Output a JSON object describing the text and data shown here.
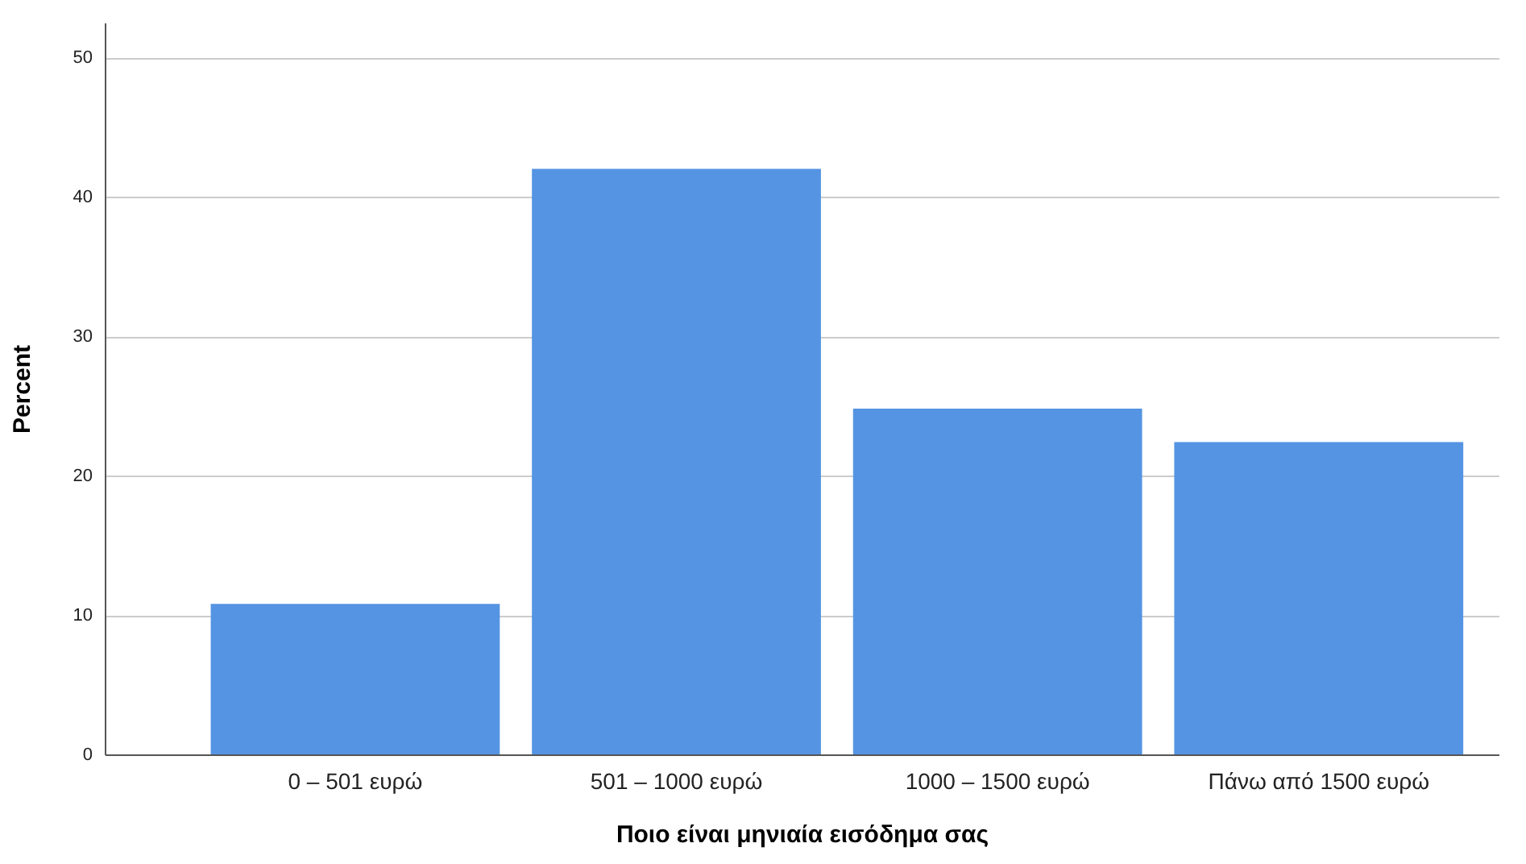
{
  "chart_data": {
    "type": "bar",
    "xlabel": "Ποιο είναι μηνιαία εισόδημα σας",
    "ylabel": "Percent",
    "categories": [
      "0 – 501 ευρώ",
      "501 – 1000 ευρώ",
      "1000 – 1500 ευρώ",
      "Πάνω από 1500 ευρώ"
    ],
    "values": [
      10.8,
      42.0,
      24.8,
      22.4
    ],
    "color": "#5594e3",
    "ylim": [
      0,
      52.5
    ],
    "yticks": [
      0,
      10,
      20,
      30,
      40,
      50
    ],
    "grid": "y"
  }
}
